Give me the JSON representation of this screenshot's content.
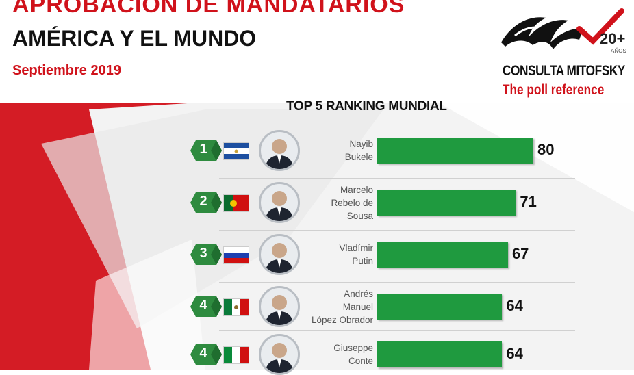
{
  "header": {
    "title": "APROBACIÓN DE MANDATARIOS",
    "subtitle": "AMÉRICA Y EL MUNDO",
    "date": "Septiembre 2019"
  },
  "logo": {
    "name": "CONSULTA MITOFSKY",
    "tagline": "The poll reference",
    "badge": "20+",
    "badge_sub": "AÑOS"
  },
  "colors": {
    "accent": "#d0121b",
    "bar": "#1f9a3f",
    "badge": "#2e8b3f"
  },
  "chart_data": {
    "type": "bar",
    "title": "TOP 5 RANKING MUNDIAL",
    "categories": [
      "Nayib Bukele",
      "Marcelo Rebelo de Sousa",
      "Vladímir Putin",
      "Andrés Manuel López Obrador",
      "Giuseppe Conte"
    ],
    "values": [
      80,
      71,
      67,
      64,
      64
    ],
    "ranks": [
      "1",
      "2",
      "3",
      "4",
      "4"
    ],
    "name_lines": [
      [
        "Nayib",
        "Bukele"
      ],
      [
        "Marcelo",
        "Rebelo de",
        "Sousa"
      ],
      [
        "Vladímir",
        "Putin"
      ],
      [
        "Andrés",
        "Manuel",
        "López Obrador"
      ],
      [
        "Giuseppe",
        "Conte"
      ]
    ],
    "flags": [
      "el-salvador-flag",
      "portugal-flag",
      "russia-flag",
      "mexico-flag",
      "italy-flag"
    ]
  }
}
